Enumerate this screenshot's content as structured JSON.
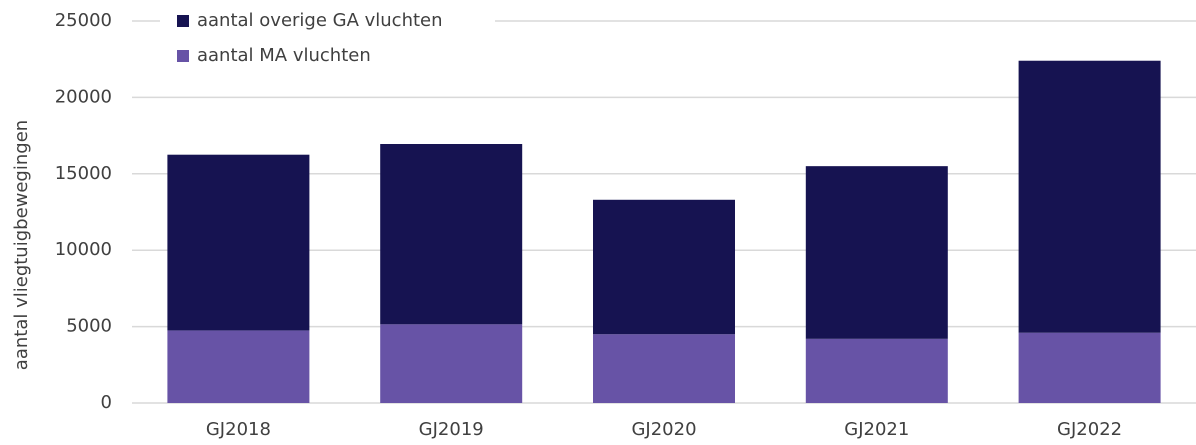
{
  "chart_data": {
    "type": "stacked_bar",
    "y_label": "aantal vliegtuigbewegingen",
    "categories": [
      "GJ2018",
      "GJ2019",
      "GJ2020",
      "GJ2021",
      "GJ2022"
    ],
    "series": [
      {
        "name": "aantal MA vluchten",
        "color": "#6753a6",
        "values": [
          4750,
          5150,
          4500,
          4200,
          4600
        ]
      },
      {
        "name": "aantal overige GA vluchten",
        "color": "#161351",
        "values": [
          11500,
          11800,
          8800,
          11300,
          17800
        ]
      }
    ],
    "ylim": [
      0,
      25000
    ],
    "yticks": [
      0,
      5000,
      10000,
      15000,
      20000,
      25000
    ],
    "grid": true,
    "legend": "top-left"
  }
}
